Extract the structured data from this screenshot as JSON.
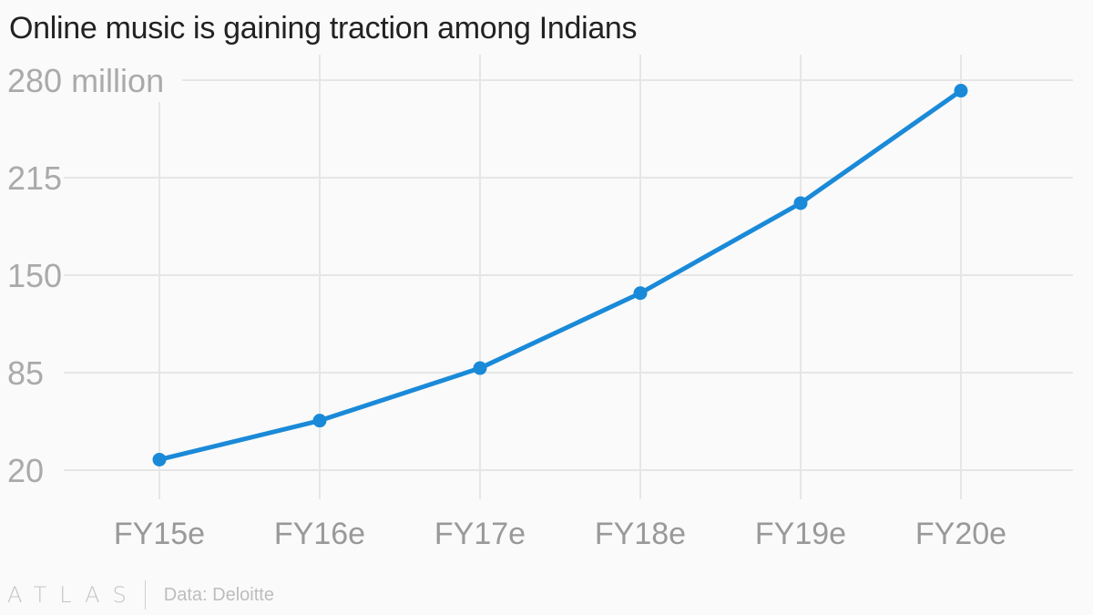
{
  "chart_data": {
    "type": "line",
    "title": "Online music is gaining traction among Indians",
    "categories": [
      "FY15e",
      "FY16e",
      "FY17e",
      "FY18e",
      "FY19e",
      "FY20e"
    ],
    "series": [
      {
        "values": [
          27,
          53,
          88,
          138,
          198,
          273
        ]
      }
    ],
    "yticks": [
      "280 million",
      "215",
      "150",
      "85",
      "20"
    ],
    "ytick_values": [
      280,
      215,
      150,
      85,
      20
    ],
    "ylim": [
      20,
      280
    ],
    "xlabel": "",
    "ylabel": "",
    "grid": true,
    "line_color": "#1a8ad8"
  },
  "footer": {
    "brand": "ATLAS",
    "source": "Data: Deloitte"
  }
}
